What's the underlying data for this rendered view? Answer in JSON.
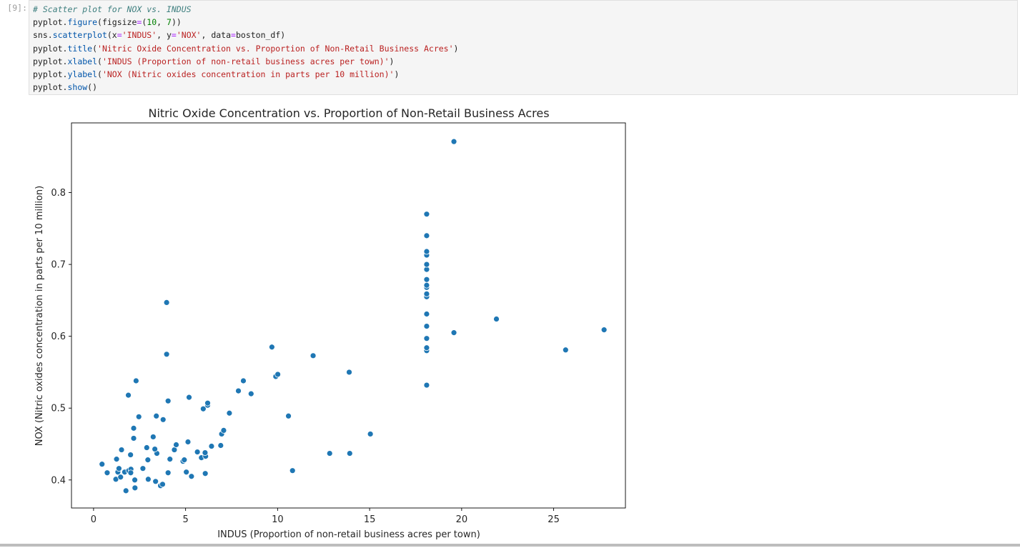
{
  "cell": {
    "prompt": "[9]:",
    "code_lines": [
      [
        {
          "t": "# Scatter plot for NOX vs. INDUS",
          "k": "c"
        }
      ],
      [
        {
          "t": "pyplot.",
          "k": ""
        },
        {
          "t": "figure",
          "k": "f"
        },
        {
          "t": "(figsize",
          "k": ""
        },
        {
          "t": "=",
          "k": "o"
        },
        {
          "t": "(",
          "k": ""
        },
        {
          "t": "10",
          "k": "n"
        },
        {
          "t": ", ",
          "k": ""
        },
        {
          "t": "7",
          "k": "n"
        },
        {
          "t": "))",
          "k": ""
        }
      ],
      [
        {
          "t": "sns.",
          "k": ""
        },
        {
          "t": "scatterplot",
          "k": "f"
        },
        {
          "t": "(x",
          "k": ""
        },
        {
          "t": "=",
          "k": "o"
        },
        {
          "t": "'INDUS'",
          "k": "s"
        },
        {
          "t": ", y",
          "k": ""
        },
        {
          "t": "=",
          "k": "o"
        },
        {
          "t": "'NOX'",
          "k": "s"
        },
        {
          "t": ", data",
          "k": ""
        },
        {
          "t": "=",
          "k": "o"
        },
        {
          "t": "boston_df)",
          "k": ""
        }
      ],
      [
        {
          "t": "pyplot.",
          "k": ""
        },
        {
          "t": "title",
          "k": "f"
        },
        {
          "t": "(",
          "k": ""
        },
        {
          "t": "'Nitric Oxide Concentration vs. Proportion of Non-Retail Business Acres'",
          "k": "s"
        },
        {
          "t": ")",
          "k": ""
        }
      ],
      [
        {
          "t": "pyplot.",
          "k": ""
        },
        {
          "t": "xlabel",
          "k": "f"
        },
        {
          "t": "(",
          "k": ""
        },
        {
          "t": "'INDUS (Proportion of non-retail business acres per town)'",
          "k": "s"
        },
        {
          "t": ")",
          "k": ""
        }
      ],
      [
        {
          "t": "pyplot.",
          "k": ""
        },
        {
          "t": "ylabel",
          "k": "f"
        },
        {
          "t": "(",
          "k": ""
        },
        {
          "t": "'NOX (Nitric oxides concentration in parts per 10 million)'",
          "k": "s"
        },
        {
          "t": ")",
          "k": ""
        }
      ],
      [
        {
          "t": "pyplot.",
          "k": ""
        },
        {
          "t": "show",
          "k": "f"
        },
        {
          "t": "()",
          "k": ""
        }
      ]
    ]
  },
  "chart_data": {
    "type": "scatter",
    "title": "Nitric Oxide Concentration vs. Proportion of Non-Retail Business Acres",
    "xlabel": "INDUS (Proportion of non-retail business acres per town)",
    "ylabel": "NOX (Nitric oxides concentration in parts per 10 million)",
    "xlim": [
      -1.2,
      28.9
    ],
    "ylim": [
      0.361,
      0.897
    ],
    "xticks": [
      0,
      5,
      10,
      15,
      20,
      25
    ],
    "yticks": [
      0.4,
      0.5,
      0.6,
      0.7,
      0.8
    ],
    "xtick_labels": [
      "0",
      "5",
      "10",
      "15",
      "20",
      "25"
    ],
    "ytick_labels": [
      "0.4",
      "0.5",
      "0.6",
      "0.7",
      "0.8"
    ],
    "grid": false,
    "color": "#1f77b4",
    "points": [
      [
        0.46,
        0.422
      ],
      [
        0.74,
        0.41
      ],
      [
        1.21,
        0.401
      ],
      [
        1.25,
        0.429
      ],
      [
        1.32,
        0.411
      ],
      [
        1.38,
        0.416
      ],
      [
        1.47,
        0.404
      ],
      [
        1.52,
        0.442
      ],
      [
        1.69,
        0.411
      ],
      [
        1.76,
        0.385
      ],
      [
        1.89,
        0.518
      ],
      [
        1.91,
        0.413
      ],
      [
        2.01,
        0.435
      ],
      [
        2.03,
        0.415
      ],
      [
        2.02,
        0.41
      ],
      [
        2.18,
        0.472
      ],
      [
        2.18,
        0.458
      ],
      [
        2.24,
        0.4
      ],
      [
        2.25,
        0.389
      ],
      [
        2.31,
        0.538
      ],
      [
        2.46,
        0.488
      ],
      [
        2.68,
        0.416
      ],
      [
        2.89,
        0.445
      ],
      [
        2.95,
        0.428
      ],
      [
        2.97,
        0.401
      ],
      [
        3.24,
        0.46
      ],
      [
        3.37,
        0.398
      ],
      [
        3.41,
        0.489
      ],
      [
        3.44,
        0.437
      ],
      [
        3.33,
        0.443
      ],
      [
        3.64,
        0.392
      ],
      [
        3.75,
        0.394
      ],
      [
        3.78,
        0.484
      ],
      [
        3.97,
        0.647
      ],
      [
        3.97,
        0.575
      ],
      [
        4.05,
        0.51
      ],
      [
        4.05,
        0.41
      ],
      [
        4.15,
        0.429
      ],
      [
        4.39,
        0.442
      ],
      [
        4.49,
        0.449
      ],
      [
        4.86,
        0.426
      ],
      [
        4.93,
        0.428
      ],
      [
        5.04,
        0.411
      ],
      [
        5.13,
        0.453
      ],
      [
        5.19,
        0.515
      ],
      [
        5.32,
        0.405
      ],
      [
        5.64,
        0.439
      ],
      [
        5.86,
        0.431
      ],
      [
        5.96,
        0.499
      ],
      [
        6.07,
        0.409
      ],
      [
        6.09,
        0.433
      ],
      [
        6.06,
        0.438
      ],
      [
        6.2,
        0.504
      ],
      [
        6.2,
        0.507
      ],
      [
        6.41,
        0.447
      ],
      [
        6.91,
        0.448
      ],
      [
        6.96,
        0.464
      ],
      [
        7.07,
        0.469
      ],
      [
        7.38,
        0.493
      ],
      [
        7.87,
        0.524
      ],
      [
        8.14,
        0.538
      ],
      [
        8.56,
        0.52
      ],
      [
        9.69,
        0.585
      ],
      [
        9.9,
        0.544
      ],
      [
        10.01,
        0.547
      ],
      [
        10.59,
        0.489
      ],
      [
        10.81,
        0.413
      ],
      [
        11.93,
        0.573
      ],
      [
        12.83,
        0.437
      ],
      [
        13.89,
        0.55
      ],
      [
        13.92,
        0.437
      ],
      [
        15.04,
        0.464
      ],
      [
        18.1,
        0.532
      ],
      [
        18.1,
        0.58
      ],
      [
        18.1,
        0.584
      ],
      [
        18.1,
        0.597
      ],
      [
        18.1,
        0.614
      ],
      [
        18.1,
        0.631
      ],
      [
        18.1,
        0.655
      ],
      [
        18.1,
        0.659
      ],
      [
        18.1,
        0.668
      ],
      [
        18.1,
        0.671
      ],
      [
        18.1,
        0.679
      ],
      [
        18.1,
        0.693
      ],
      [
        18.1,
        0.7
      ],
      [
        18.1,
        0.713
      ],
      [
        18.1,
        0.718
      ],
      [
        18.1,
        0.74
      ],
      [
        18.1,
        0.77
      ],
      [
        19.58,
        0.871
      ],
      [
        19.58,
        0.605
      ],
      [
        21.89,
        0.624
      ],
      [
        25.65,
        0.581
      ],
      [
        27.74,
        0.609
      ]
    ]
  }
}
